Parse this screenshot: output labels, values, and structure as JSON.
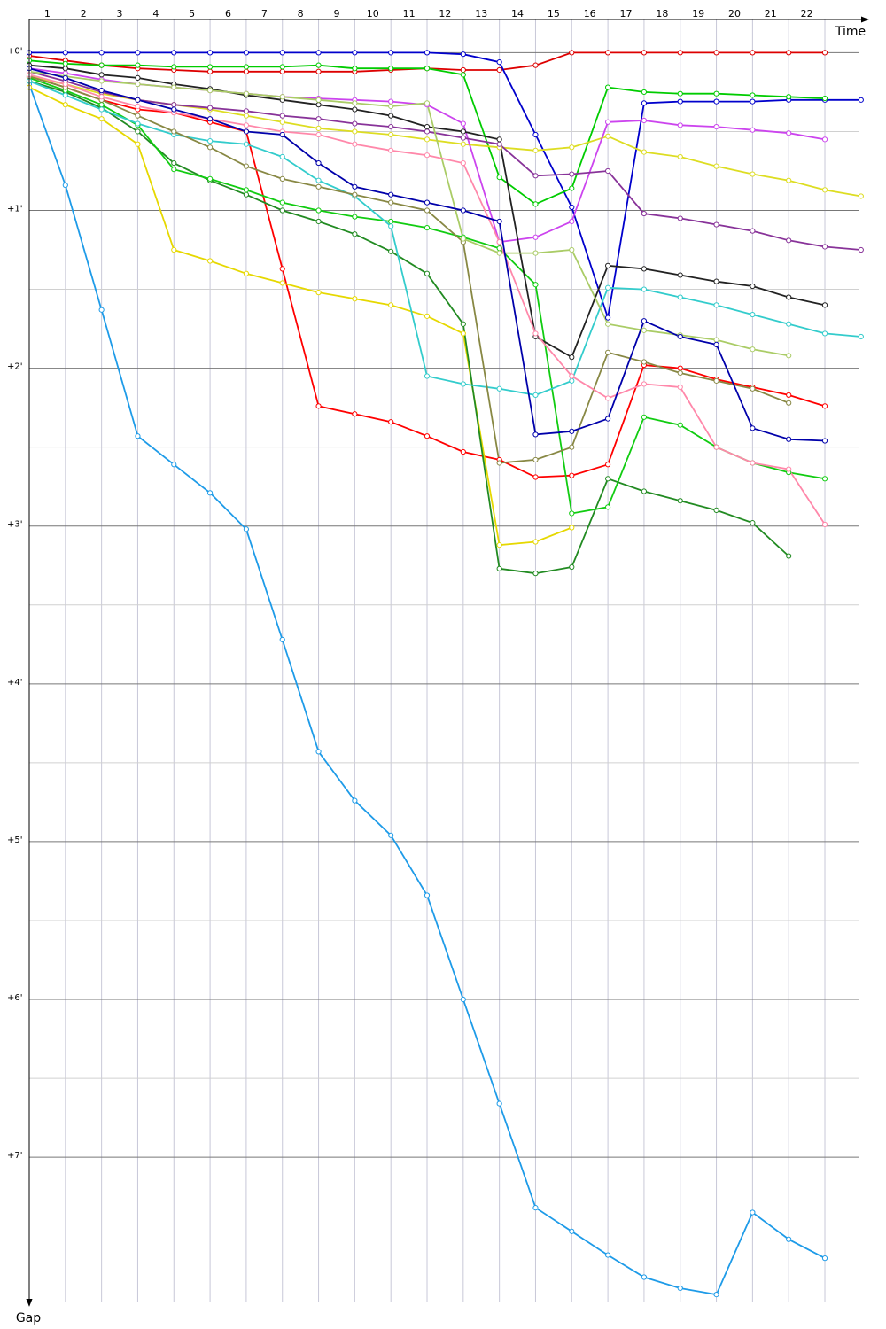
{
  "chart_data": {
    "type": "line",
    "x_label": "Time",
    "y_label": "Gap",
    "x": [
      0,
      1,
      2,
      3,
      4,
      5,
      6,
      7,
      8,
      9,
      10,
      11,
      12,
      13,
      14,
      15,
      16,
      17,
      18,
      19,
      20,
      21,
      22,
      23
    ],
    "xlim": [
      0,
      23.2
    ],
    "xticks": [
      1,
      2,
      3,
      4,
      5,
      6,
      7,
      8,
      9,
      10,
      11,
      12,
      13,
      14,
      15,
      16,
      17,
      18,
      19,
      20,
      21,
      22
    ],
    "ylim": [
      -0.21,
      7.92
    ],
    "y_inverted": true,
    "yticks": [
      {
        "value": 0,
        "label": "+0'"
      },
      {
        "value": 1,
        "label": "+1'"
      },
      {
        "value": 2,
        "label": "+2'"
      },
      {
        "value": 3,
        "label": "+3'"
      },
      {
        "value": 4,
        "label": "+4'"
      },
      {
        "value": 5,
        "label": "+5'"
      },
      {
        "value": 6,
        "label": "+6'"
      },
      {
        "value": 7,
        "label": "+7'"
      }
    ],
    "grid": true,
    "series": [
      {
        "color": "#dd0000",
        "values": [
          0.02,
          0.05,
          0.08,
          0.1,
          0.11,
          0.12,
          0.12,
          0.12,
          0.12,
          0.12,
          0.11,
          0.1,
          0.11,
          0.11,
          0.08,
          0,
          0,
          0,
          0,
          0,
          0,
          0,
          0,
          null
        ]
      },
      {
        "color": "#0000cc",
        "values": [
          0,
          0,
          0,
          0,
          0,
          0,
          0,
          0,
          0,
          0,
          0,
          0,
          0.01,
          0.06,
          0.52,
          0.98,
          1.68,
          0.32,
          0.31,
          0.31,
          0.31,
          0.3,
          0.3,
          0.3
        ]
      },
      {
        "color": "#1e9be8",
        "values": [
          0.2,
          0.84,
          1.63,
          2.43,
          2.61,
          2.79,
          3.02,
          3.72,
          4.43,
          4.74,
          4.96,
          5.34,
          6.0,
          6.66,
          7.32,
          7.47,
          7.62,
          7.76,
          7.83,
          7.87,
          7.35,
          7.52,
          7.64,
          null
        ]
      },
      {
        "color": "#ff0000",
        "values": [
          0.15,
          0.22,
          0.3,
          0.36,
          0.38,
          0.44,
          0.5,
          1.37,
          2.24,
          2.29,
          2.34,
          2.43,
          2.53,
          2.58,
          2.69,
          2.68,
          2.61,
          1.98,
          2.0,
          2.07,
          2.12,
          2.17,
          2.24,
          null
        ]
      },
      {
        "color": "#00cc00",
        "values": [
          0.05,
          0.07,
          0.08,
          0.08,
          0.09,
          0.09,
          0.09,
          0.09,
          0.08,
          0.1,
          0.1,
          0.1,
          0.14,
          0.79,
          0.96,
          0.86,
          0.22,
          0.25,
          0.26,
          0.26,
          0.27,
          0.28,
          0.29,
          null
        ]
      },
      {
        "color": "#e6d800",
        "values": [
          0.22,
          0.33,
          0.42,
          0.58,
          1.25,
          1.32,
          1.4,
          1.46,
          1.52,
          1.56,
          1.6,
          1.67,
          1.78,
          3.12,
          3.1,
          3.01,
          null,
          null,
          null,
          null,
          null,
          null,
          null,
          null
        ]
      },
      {
        "color": "#dddd22",
        "values": [
          0.15,
          0.2,
          0.26,
          0.3,
          0.33,
          0.36,
          0.4,
          0.44,
          0.48,
          0.5,
          0.52,
          0.55,
          0.58,
          0.6,
          0.62,
          0.6,
          0.53,
          0.63,
          0.66,
          0.72,
          0.77,
          0.81,
          0.87,
          0.91
        ]
      },
      {
        "color": "#228b22",
        "values": [
          0.18,
          0.25,
          0.35,
          0.5,
          0.7,
          0.81,
          0.9,
          1.0,
          1.07,
          1.15,
          1.26,
          1.4,
          1.72,
          3.27,
          3.3,
          3.26,
          2.7,
          2.78,
          2.84,
          2.9,
          2.98,
          3.19,
          null,
          null
        ]
      },
      {
        "color": "#11cc11",
        "values": [
          0.16,
          0.24,
          0.33,
          0.46,
          0.74,
          0.8,
          0.87,
          0.95,
          1.0,
          1.04,
          1.07,
          1.11,
          1.17,
          1.24,
          1.47,
          2.92,
          2.88,
          2.31,
          2.36,
          2.5,
          2.6,
          2.66,
          2.7,
          null
        ]
      },
      {
        "color": "#33cccc",
        "values": [
          0.18,
          0.27,
          0.36,
          0.45,
          0.52,
          0.56,
          0.58,
          0.66,
          0.81,
          0.91,
          1.1,
          2.05,
          2.1,
          2.13,
          2.17,
          2.08,
          1.49,
          1.5,
          1.55,
          1.6,
          1.66,
          1.72,
          1.78,
          1.8
        ]
      },
      {
        "color": "#cc44ee",
        "values": [
          0.1,
          0.13,
          0.17,
          0.2,
          0.22,
          0.24,
          0.26,
          0.28,
          0.29,
          0.3,
          0.31,
          0.33,
          0.45,
          1.2,
          1.17,
          1.07,
          0.44,
          0.43,
          0.46,
          0.47,
          0.49,
          0.51,
          0.55,
          null
        ]
      },
      {
        "color": "#883399",
        "values": [
          0.12,
          0.18,
          0.25,
          0.3,
          0.33,
          0.35,
          0.37,
          0.4,
          0.42,
          0.45,
          0.47,
          0.5,
          0.54,
          0.58,
          0.78,
          0.77,
          0.75,
          1.02,
          1.05,
          1.09,
          1.13,
          1.19,
          1.23,
          1.25
        ]
      },
      {
        "color": "#222222",
        "values": [
          0.08,
          0.1,
          0.14,
          0.16,
          0.2,
          0.23,
          0.27,
          0.3,
          0.33,
          0.36,
          0.4,
          0.47,
          0.5,
          0.55,
          1.8,
          1.93,
          1.35,
          1.37,
          1.41,
          1.45,
          1.48,
          1.55,
          1.6,
          null
        ]
      },
      {
        "color": "#888844",
        "values": [
          0.15,
          0.22,
          0.3,
          0.4,
          0.5,
          0.6,
          0.72,
          0.8,
          0.85,
          0.9,
          0.95,
          1.0,
          1.2,
          2.6,
          2.58,
          2.5,
          1.9,
          1.96,
          2.03,
          2.08,
          2.13,
          2.22,
          null,
          null
        ]
      },
      {
        "color": "#aacc66",
        "values": [
          0.12,
          0.15,
          0.18,
          0.2,
          0.22,
          0.24,
          0.26,
          0.28,
          0.3,
          0.32,
          0.34,
          0.32,
          1.18,
          1.27,
          1.27,
          1.25,
          1.72,
          1.76,
          1.79,
          1.82,
          1.88,
          1.92,
          null,
          null
        ]
      },
      {
        "color": "#ff88aa",
        "values": [
          0.14,
          0.2,
          0.28,
          0.34,
          0.38,
          0.42,
          0.46,
          0.5,
          0.52,
          0.58,
          0.62,
          0.65,
          0.7,
          1.2,
          1.78,
          2.05,
          2.19,
          2.1,
          2.12,
          2.5,
          2.6,
          2.64,
          2.99,
          null
        ]
      },
      {
        "color": "#0000aa",
        "values": [
          0.1,
          0.16,
          0.24,
          0.3,
          0.36,
          0.42,
          0.5,
          0.52,
          0.7,
          0.85,
          0.9,
          0.95,
          1.0,
          1.07,
          2.42,
          2.4,
          2.32,
          1.7,
          1.8,
          1.85,
          2.38,
          2.45,
          2.46,
          null
        ]
      }
    ]
  }
}
